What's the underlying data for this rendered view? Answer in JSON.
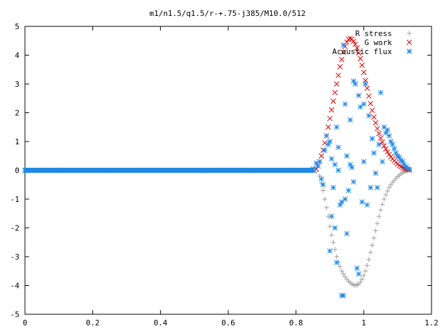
{
  "chart_data": {
    "type": "scatter",
    "title": "m1/n1.5/q1.5/r-+.75-j385/M10.0/512",
    "xlabel": "",
    "ylabel": "",
    "xlim": [
      0,
      1.2
    ],
    "ylim": [
      -5,
      5
    ],
    "x_ticks": [
      "0",
      "0.2",
      "0.4",
      "0.6",
      "0.8",
      "1",
      "1.2"
    ],
    "y_ticks": [
      "5",
      "4",
      "3",
      "2",
      "1",
      "0",
      "-1",
      "-2",
      "-3",
      "-4",
      "-5"
    ],
    "grid": false,
    "legend_position": "top-right",
    "series": [
      {
        "name": "R stress",
        "marker": "plus",
        "color": "#a0a0a0",
        "points": [
          [
            0.86,
            -0.05
          ],
          [
            0.87,
            -0.2
          ],
          [
            0.875,
            -0.45
          ],
          [
            0.88,
            -0.7
          ],
          [
            0.885,
            -1.0
          ],
          [
            0.89,
            -1.3
          ],
          [
            0.895,
            -1.6
          ],
          [
            0.9,
            -1.95
          ],
          [
            0.905,
            -2.25
          ],
          [
            0.91,
            -2.5
          ],
          [
            0.915,
            -2.75
          ],
          [
            0.92,
            -3.0
          ],
          [
            0.925,
            -3.2
          ],
          [
            0.93,
            -3.35
          ],
          [
            0.935,
            -3.5
          ],
          [
            0.94,
            -3.6
          ],
          [
            0.945,
            -3.7
          ],
          [
            0.95,
            -3.78
          ],
          [
            0.955,
            -3.85
          ],
          [
            0.96,
            -3.9
          ],
          [
            0.965,
            -3.95
          ],
          [
            0.97,
            -3.98
          ],
          [
            0.975,
            -4.0
          ],
          [
            0.98,
            -3.98
          ],
          [
            0.985,
            -3.95
          ],
          [
            0.99,
            -3.88
          ],
          [
            0.995,
            -3.78
          ],
          [
            1.0,
            -3.65
          ],
          [
            1.005,
            -3.5
          ],
          [
            1.01,
            -3.3
          ],
          [
            1.015,
            -3.1
          ],
          [
            1.02,
            -2.85
          ],
          [
            1.025,
            -2.6
          ],
          [
            1.03,
            -2.35
          ],
          [
            1.035,
            -2.1
          ],
          [
            1.04,
            -1.85
          ],
          [
            1.045,
            -1.6
          ],
          [
            1.05,
            -1.38
          ],
          [
            1.055,
            -1.18
          ],
          [
            1.06,
            -1.0
          ],
          [
            1.065,
            -0.85
          ],
          [
            1.07,
            -0.72
          ],
          [
            1.075,
            -0.6
          ],
          [
            1.08,
            -0.5
          ],
          [
            1.085,
            -0.42
          ],
          [
            1.09,
            -0.35
          ],
          [
            1.095,
            -0.28
          ],
          [
            1.1,
            -0.22
          ],
          [
            1.105,
            -0.17
          ],
          [
            1.11,
            -0.12
          ],
          [
            1.115,
            -0.08
          ],
          [
            1.12,
            -0.05
          ],
          [
            1.125,
            -0.03
          ],
          [
            1.13,
            -0.01
          ],
          [
            1.135,
            0.0
          ]
        ]
      },
      {
        "name": "G work",
        "marker": "cross",
        "color": "#dd0000",
        "points": [
          [
            0.86,
            0.05
          ],
          [
            0.865,
            0.15
          ],
          [
            0.87,
            0.3
          ],
          [
            0.875,
            0.5
          ],
          [
            0.88,
            0.7
          ],
          [
            0.885,
            0.95
          ],
          [
            0.89,
            1.2
          ],
          [
            0.895,
            1.5
          ],
          [
            0.9,
            1.8
          ],
          [
            0.905,
            2.1
          ],
          [
            0.91,
            2.4
          ],
          [
            0.915,
            2.7
          ],
          [
            0.92,
            3.0
          ],
          [
            0.925,
            3.3
          ],
          [
            0.93,
            3.6
          ],
          [
            0.935,
            3.85
          ],
          [
            0.94,
            4.1
          ],
          [
            0.945,
            4.3
          ],
          [
            0.95,
            4.45
          ],
          [
            0.955,
            4.55
          ],
          [
            0.96,
            4.58
          ],
          [
            0.965,
            4.55
          ],
          [
            0.97,
            4.48
          ],
          [
            0.975,
            4.38
          ],
          [
            0.98,
            4.25
          ],
          [
            0.985,
            4.08
          ],
          [
            0.99,
            3.88
          ],
          [
            0.995,
            3.65
          ],
          [
            1.0,
            3.4
          ],
          [
            1.005,
            3.12
          ],
          [
            1.01,
            2.85
          ],
          [
            1.015,
            2.58
          ],
          [
            1.02,
            2.32
          ],
          [
            1.025,
            2.08
          ],
          [
            1.03,
            1.85
          ],
          [
            1.035,
            1.65
          ],
          [
            1.04,
            1.45
          ],
          [
            1.045,
            1.28
          ],
          [
            1.05,
            1.12
          ],
          [
            1.055,
            0.98
          ],
          [
            1.06,
            0.85
          ],
          [
            1.065,
            0.74
          ],
          [
            1.07,
            0.64
          ],
          [
            1.075,
            0.55
          ],
          [
            1.08,
            0.47
          ],
          [
            1.085,
            0.4
          ],
          [
            1.09,
            0.33
          ],
          [
            1.095,
            0.27
          ],
          [
            1.1,
            0.22
          ],
          [
            1.105,
            0.17
          ],
          [
            1.11,
            0.13
          ],
          [
            1.115,
            0.09
          ],
          [
            1.12,
            0.06
          ],
          [
            1.125,
            0.04
          ],
          [
            1.13,
            0.02
          ],
          [
            1.135,
            0.01
          ]
        ]
      },
      {
        "name": "Acoustic flux",
        "marker": "star",
        "color": "#1e88e5",
        "points": [
          [
            0.85,
            0.05
          ],
          [
            0.86,
            0.25
          ],
          [
            0.865,
            0.15
          ],
          [
            0.87,
            0.3
          ],
          [
            0.875,
            -0.3
          ],
          [
            0.88,
            -0.5
          ],
          [
            0.885,
            0.7
          ],
          [
            0.89,
            1.2
          ],
          [
            0.895,
            0.9
          ],
          [
            0.9,
            1.0
          ],
          [
            0.905,
            0.4
          ],
          [
            0.91,
            -0.6
          ],
          [
            0.915,
            0.2
          ],
          [
            0.92,
            1.5
          ],
          [
            0.925,
            0.8
          ],
          [
            0.93,
            -1.2
          ],
          [
            0.935,
            -1.1
          ],
          [
            0.94,
            4.35
          ],
          [
            0.945,
            -1.0
          ],
          [
            0.95,
            0.5
          ],
          [
            0.955,
            -0.7
          ],
          [
            0.96,
            1.75
          ],
          [
            0.965,
            0.1
          ],
          [
            0.97,
            -0.4
          ],
          [
            0.975,
            3.0
          ],
          [
            0.98,
            -3.4
          ],
          [
            0.985,
            -3.6
          ],
          [
            0.99,
            2.2
          ],
          [
            0.995,
            -1.1
          ],
          [
            1.0,
            0.3
          ],
          [
            1.005,
            3.0
          ],
          [
            1.01,
            -1.2
          ],
          [
            1.015,
            1.9
          ],
          [
            1.02,
            -0.6
          ],
          [
            1.025,
            1.1
          ],
          [
            1.03,
            0.6
          ],
          [
            1.035,
            -0.1
          ],
          [
            1.04,
            -0.6
          ],
          [
            1.045,
            0.9
          ],
          [
            1.05,
            2.7
          ],
          [
            1.055,
            0.3
          ],
          [
            1.06,
            1.5
          ],
          [
            1.065,
            1.3
          ],
          [
            1.07,
            1.4
          ],
          [
            1.075,
            1.2
          ],
          [
            1.08,
            1.0
          ],
          [
            1.085,
            0.9
          ],
          [
            1.09,
            0.75
          ],
          [
            1.095,
            0.6
          ],
          [
            1.1,
            0.5
          ],
          [
            1.105,
            0.45
          ],
          [
            1.11,
            0.35
          ],
          [
            1.115,
            0.3
          ],
          [
            1.12,
            0.2
          ],
          [
            1.125,
            0.12
          ],
          [
            1.13,
            0.06
          ],
          [
            1.135,
            0.02
          ],
          [
            0.9,
            -2.8
          ],
          [
            0.92,
            -3.2
          ],
          [
            0.905,
            -1.6
          ],
          [
            0.935,
            -4.35
          ],
          [
            0.94,
            -4.35
          ],
          [
            0.945,
            2.3
          ],
          [
            1.0,
            2.3
          ],
          [
            0.915,
            -2.0
          ],
          [
            0.925,
            0.0
          ],
          [
            0.95,
            -2.2
          ],
          [
            0.96,
            0.2
          ],
          [
            0.97,
            3.1
          ],
          [
            0.985,
            2.6
          ]
        ]
      }
    ]
  }
}
